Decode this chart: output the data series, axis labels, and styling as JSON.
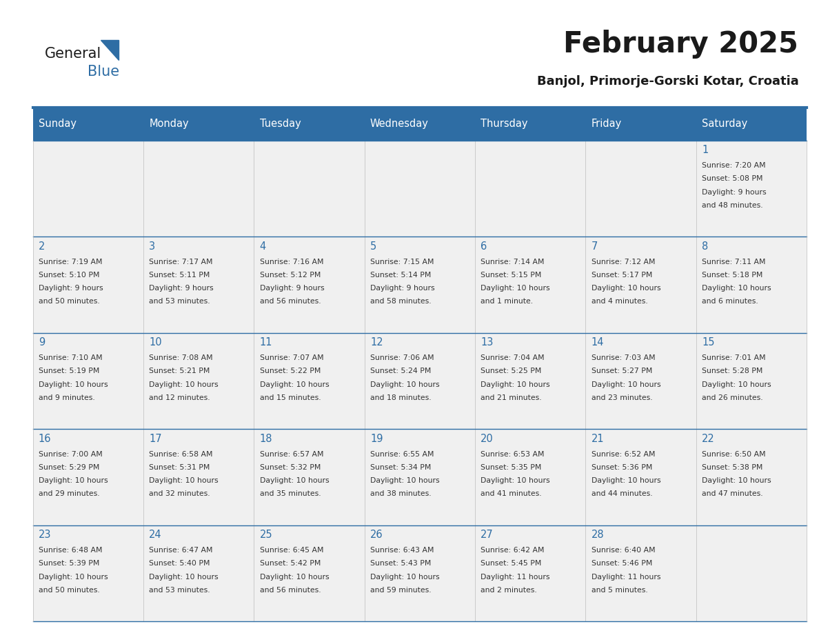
{
  "title": "February 2025",
  "subtitle": "Banjol, Primorje-Gorski Kotar, Croatia",
  "header_bg_color": "#2E6DA4",
  "header_text_color": "#FFFFFF",
  "cell_bg_color": "#F0F0F0",
  "day_number_color": "#2E6DA4",
  "info_text_color": "#333333",
  "border_color": "#2E6DA4",
  "days_of_week": [
    "Sunday",
    "Monday",
    "Tuesday",
    "Wednesday",
    "Thursday",
    "Friday",
    "Saturday"
  ],
  "weeks": [
    [
      {
        "day": "",
        "info": ""
      },
      {
        "day": "",
        "info": ""
      },
      {
        "day": "",
        "info": ""
      },
      {
        "day": "",
        "info": ""
      },
      {
        "day": "",
        "info": ""
      },
      {
        "day": "",
        "info": ""
      },
      {
        "day": "1",
        "info": "Sunrise: 7:20 AM\nSunset: 5:08 PM\nDaylight: 9 hours\nand 48 minutes."
      }
    ],
    [
      {
        "day": "2",
        "info": "Sunrise: 7:19 AM\nSunset: 5:10 PM\nDaylight: 9 hours\nand 50 minutes."
      },
      {
        "day": "3",
        "info": "Sunrise: 7:17 AM\nSunset: 5:11 PM\nDaylight: 9 hours\nand 53 minutes."
      },
      {
        "day": "4",
        "info": "Sunrise: 7:16 AM\nSunset: 5:12 PM\nDaylight: 9 hours\nand 56 minutes."
      },
      {
        "day": "5",
        "info": "Sunrise: 7:15 AM\nSunset: 5:14 PM\nDaylight: 9 hours\nand 58 minutes."
      },
      {
        "day": "6",
        "info": "Sunrise: 7:14 AM\nSunset: 5:15 PM\nDaylight: 10 hours\nand 1 minute."
      },
      {
        "day": "7",
        "info": "Sunrise: 7:12 AM\nSunset: 5:17 PM\nDaylight: 10 hours\nand 4 minutes."
      },
      {
        "day": "8",
        "info": "Sunrise: 7:11 AM\nSunset: 5:18 PM\nDaylight: 10 hours\nand 6 minutes."
      }
    ],
    [
      {
        "day": "9",
        "info": "Sunrise: 7:10 AM\nSunset: 5:19 PM\nDaylight: 10 hours\nand 9 minutes."
      },
      {
        "day": "10",
        "info": "Sunrise: 7:08 AM\nSunset: 5:21 PM\nDaylight: 10 hours\nand 12 minutes."
      },
      {
        "day": "11",
        "info": "Sunrise: 7:07 AM\nSunset: 5:22 PM\nDaylight: 10 hours\nand 15 minutes."
      },
      {
        "day": "12",
        "info": "Sunrise: 7:06 AM\nSunset: 5:24 PM\nDaylight: 10 hours\nand 18 minutes."
      },
      {
        "day": "13",
        "info": "Sunrise: 7:04 AM\nSunset: 5:25 PM\nDaylight: 10 hours\nand 21 minutes."
      },
      {
        "day": "14",
        "info": "Sunrise: 7:03 AM\nSunset: 5:27 PM\nDaylight: 10 hours\nand 23 minutes."
      },
      {
        "day": "15",
        "info": "Sunrise: 7:01 AM\nSunset: 5:28 PM\nDaylight: 10 hours\nand 26 minutes."
      }
    ],
    [
      {
        "day": "16",
        "info": "Sunrise: 7:00 AM\nSunset: 5:29 PM\nDaylight: 10 hours\nand 29 minutes."
      },
      {
        "day": "17",
        "info": "Sunrise: 6:58 AM\nSunset: 5:31 PM\nDaylight: 10 hours\nand 32 minutes."
      },
      {
        "day": "18",
        "info": "Sunrise: 6:57 AM\nSunset: 5:32 PM\nDaylight: 10 hours\nand 35 minutes."
      },
      {
        "day": "19",
        "info": "Sunrise: 6:55 AM\nSunset: 5:34 PM\nDaylight: 10 hours\nand 38 minutes."
      },
      {
        "day": "20",
        "info": "Sunrise: 6:53 AM\nSunset: 5:35 PM\nDaylight: 10 hours\nand 41 minutes."
      },
      {
        "day": "21",
        "info": "Sunrise: 6:52 AM\nSunset: 5:36 PM\nDaylight: 10 hours\nand 44 minutes."
      },
      {
        "day": "22",
        "info": "Sunrise: 6:50 AM\nSunset: 5:38 PM\nDaylight: 10 hours\nand 47 minutes."
      }
    ],
    [
      {
        "day": "23",
        "info": "Sunrise: 6:48 AM\nSunset: 5:39 PM\nDaylight: 10 hours\nand 50 minutes."
      },
      {
        "day": "24",
        "info": "Sunrise: 6:47 AM\nSunset: 5:40 PM\nDaylight: 10 hours\nand 53 minutes."
      },
      {
        "day": "25",
        "info": "Sunrise: 6:45 AM\nSunset: 5:42 PM\nDaylight: 10 hours\nand 56 minutes."
      },
      {
        "day": "26",
        "info": "Sunrise: 6:43 AM\nSunset: 5:43 PM\nDaylight: 10 hours\nand 59 minutes."
      },
      {
        "day": "27",
        "info": "Sunrise: 6:42 AM\nSunset: 5:45 PM\nDaylight: 11 hours\nand 2 minutes."
      },
      {
        "day": "28",
        "info": "Sunrise: 6:40 AM\nSunset: 5:46 PM\nDaylight: 11 hours\nand 5 minutes."
      },
      {
        "day": "",
        "info": ""
      }
    ]
  ],
  "logo_text_general": "General",
  "logo_text_blue": "Blue",
  "logo_triangle_color": "#2E6DA4"
}
